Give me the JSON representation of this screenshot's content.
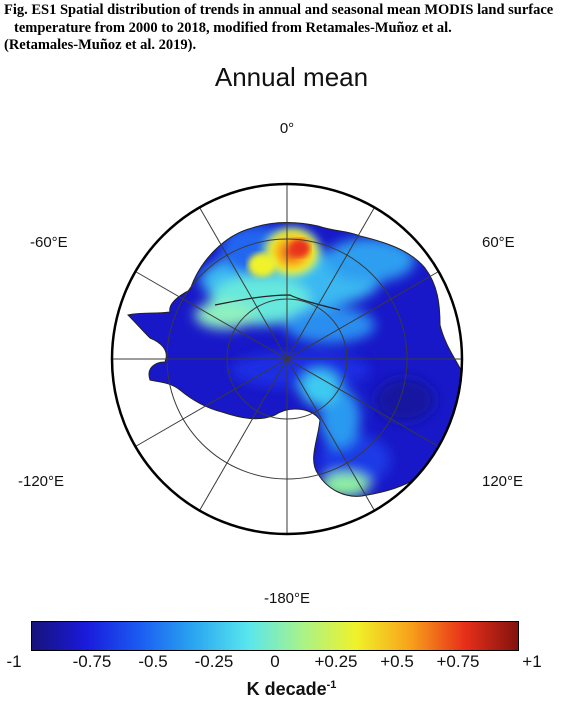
{
  "caption": {
    "line1": "Fig. ES1 Spatial distribution of trends in annual and seasonal mean MODIS land surface",
    "line2": "temperature from 2000 to 2018, modified from Retamales-Muñoz et al.",
    "line3": "(Retamales-Muñoz et al. 2019)."
  },
  "map": {
    "title": "Annual mean",
    "projection": "south polar stereographic",
    "meridian_labels": {
      "top": "0°",
      "upper_left": "-60°E",
      "upper_right": "60°E",
      "lower_left": "-120°E",
      "lower_right": "120°E",
      "bottom": "-180°E"
    }
  },
  "colorbar": {
    "colors": [
      "#16137a",
      "#1a1adc",
      "#1b5cf2",
      "#2aa6f0",
      "#58e6ee",
      "#a8f28a",
      "#f0f22a",
      "#f7a21a",
      "#e8301a",
      "#84120e"
    ],
    "min": -1,
    "max": 1,
    "ticks": [
      "-1",
      "-0.75",
      "-0.5",
      "-0.25",
      "0",
      "+0.25",
      "+0.5",
      "+0.75",
      "+1"
    ],
    "label_main": "K decade",
    "label_exp": "-1"
  }
}
